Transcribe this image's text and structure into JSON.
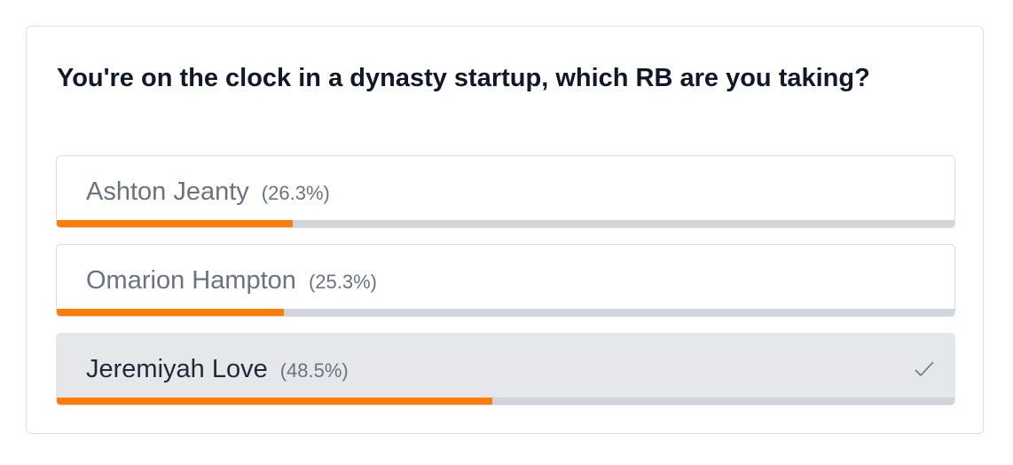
{
  "poll": {
    "question": "You're on the clock in a dynasty startup, which RB are you taking?",
    "options": [
      {
        "name": "Ashton Jeanty",
        "percent": 26.3,
        "percent_label": "(26.3%)",
        "selected": false
      },
      {
        "name": "Omarion Hampton",
        "percent": 25.3,
        "percent_label": "(25.3%)",
        "selected": false
      },
      {
        "name": "Jeremiyah Love",
        "percent": 48.5,
        "percent_label": "(48.5%)",
        "selected": true
      }
    ],
    "bar_color": "#fa7d0a"
  }
}
